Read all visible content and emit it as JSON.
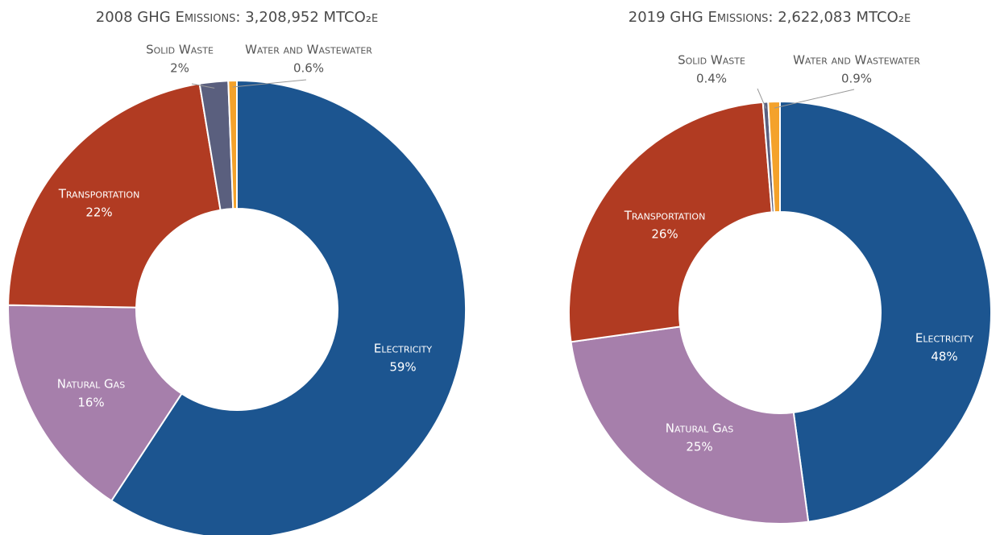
{
  "chart_data": [
    {
      "type": "donut",
      "title": "2008 GHG Emissions: 3,208,952 MTCO₂e",
      "categories": [
        "Electricity",
        "Natural Gas",
        "Transportation",
        "Solid Waste",
        "Water and Wastewater"
      ],
      "values": [
        59,
        16,
        22,
        2,
        0.6
      ],
      "value_labels": [
        "59%",
        "16%",
        "22%",
        "2%",
        "0.6%"
      ],
      "colors": [
        "#1c5590",
        "#a67fab",
        "#b13b22",
        "#5a5f7e",
        "#f4a22b"
      ]
    },
    {
      "type": "donut",
      "title": "2019 GHG Emissions: 2,622,083  MTCO₂e",
      "categories": [
        "Electricity",
        "Natural Gas",
        "Transportation",
        "Solid Waste",
        "Water and Wastewater"
      ],
      "values": [
        48,
        25,
        26,
        0.4,
        0.9
      ],
      "value_labels": [
        "48%",
        "25%",
        "26%",
        "0.4%",
        "0.9%"
      ],
      "colors": [
        "#1c5590",
        "#a67fab",
        "#b13b22",
        "#5a5f7e",
        "#f4a22b"
      ]
    }
  ]
}
